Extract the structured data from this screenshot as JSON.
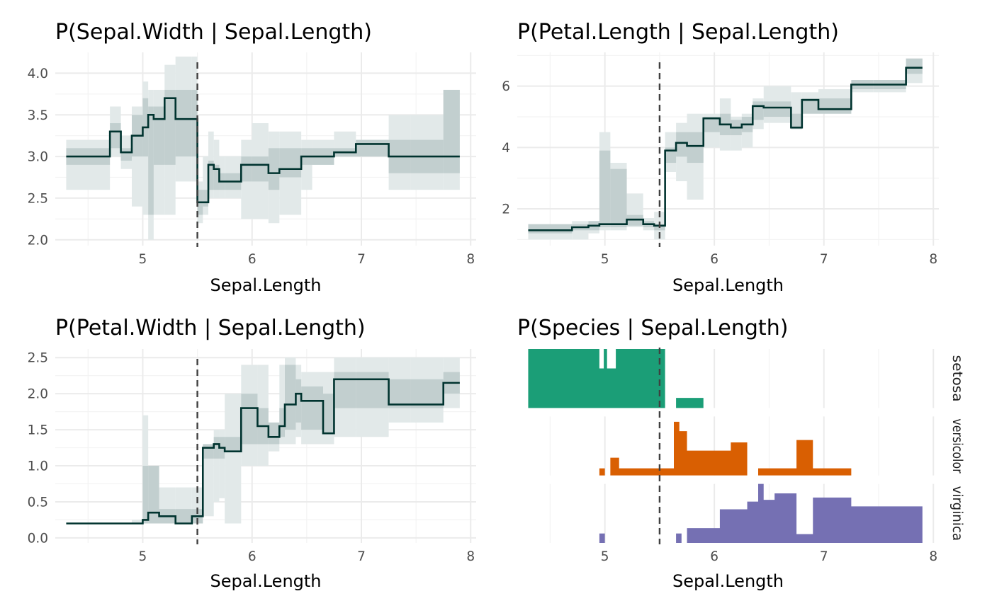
{
  "chart_data": [
    {
      "type": "line",
      "title": "P(Sepal.Width | Sepal.Length)",
      "xlabel": "Sepal.Length",
      "ylabel": "",
      "xlim": [
        4.2,
        8.05
      ],
      "ylim": [
        1.93,
        4.25
      ],
      "xticks": [
        5,
        6,
        7,
        8
      ],
      "yticks": [
        2.0,
        2.5,
        3.0,
        3.5,
        4.0
      ],
      "ytick_labels": [
        "2.0",
        "2.5",
        "3.0",
        "3.5",
        "4.0"
      ],
      "reference_line_x": 5.5,
      "band_colors": {
        "outer": "#e2e9e9",
        "inner": "#c2cfcf"
      },
      "line_color": "#00332f",
      "series": [
        {
          "x": [
            4.3,
            4.7,
            4.8,
            4.9,
            5.0,
            5.05,
            5.1,
            5.2,
            5.3,
            5.45,
            5.5,
            5.55,
            5.6,
            5.65,
            5.7,
            5.75,
            5.9,
            6.0,
            6.15,
            6.25,
            6.45,
            6.55,
            6.75,
            6.95,
            7.25,
            7.45,
            7.75,
            7.9
          ],
          "y": [
            3.0,
            3.3,
            3.05,
            3.25,
            3.35,
            3.5,
            3.45,
            3.7,
            3.45,
            3.45,
            2.45,
            2.45,
            2.9,
            2.85,
            2.7,
            2.7,
            2.9,
            2.9,
            2.8,
            2.85,
            3.0,
            3.0,
            3.05,
            3.15,
            3.0,
            3.0,
            3.0,
            3.0
          ],
          "lo_outer": [
            2.6,
            3.0,
            2.85,
            2.4,
            2.3,
            2.0,
            2.3,
            2.3,
            2.7,
            2.7,
            2.2,
            2.3,
            2.5,
            2.5,
            2.5,
            2.5,
            2.25,
            2.25,
            2.2,
            2.3,
            2.6,
            2.9,
            3.0,
            3.0,
            2.6,
            2.6,
            2.6,
            2.6
          ],
          "hi_outer": [
            3.2,
            3.6,
            3.25,
            3.6,
            3.9,
            3.8,
            3.8,
            4.1,
            4.2,
            4.2,
            2.7,
            3.0,
            3.3,
            3.2,
            3.0,
            3.0,
            3.2,
            3.4,
            3.3,
            3.3,
            3.2,
            3.2,
            3.3,
            3.2,
            3.5,
            3.5,
            3.8,
            3.8
          ],
          "lo_inner": [
            2.9,
            3.1,
            2.95,
            3.0,
            3.0,
            2.3,
            2.9,
            2.9,
            3.0,
            3.0,
            2.3,
            2.4,
            2.6,
            2.6,
            2.6,
            2.6,
            2.7,
            2.7,
            2.6,
            2.75,
            2.9,
            2.9,
            3.0,
            3.0,
            2.8,
            2.8,
            2.8,
            2.8
          ],
          "hi_inner": [
            3.1,
            3.4,
            3.1,
            3.5,
            3.7,
            3.6,
            3.6,
            3.8,
            3.8,
            3.8,
            2.6,
            2.6,
            2.95,
            2.9,
            2.8,
            2.8,
            3.0,
            3.0,
            3.1,
            3.1,
            3.1,
            3.1,
            3.1,
            3.2,
            3.2,
            3.2,
            3.8,
            3.8
          ]
        }
      ]
    },
    {
      "type": "line",
      "title": "P(Petal.Length | Sepal.Length)",
      "xlabel": "Sepal.Length",
      "ylabel": "",
      "xlim": [
        4.2,
        8.05
      ],
      "ylim": [
        0.8,
        7.1
      ],
      "xticks": [
        5,
        6,
        7,
        8
      ],
      "yticks": [
        2,
        4,
        6
      ],
      "ytick_labels": [
        "2",
        "4",
        "6"
      ],
      "reference_line_x": 5.5,
      "band_colors": {
        "outer": "#e2e9e9",
        "inner": "#c2cfcf"
      },
      "line_color": "#00332f",
      "series": [
        {
          "x": [
            4.3,
            4.7,
            4.85,
            4.95,
            5.05,
            5.2,
            5.35,
            5.45,
            5.55,
            5.65,
            5.75,
            5.9,
            6.05,
            6.15,
            6.25,
            6.35,
            6.45,
            6.7,
            6.8,
            6.95,
            7.25,
            7.45,
            7.75,
            7.9
          ],
          "y": [
            1.3,
            1.4,
            1.45,
            1.5,
            1.5,
            1.65,
            1.5,
            1.45,
            3.9,
            4.15,
            4.05,
            4.95,
            4.75,
            4.65,
            4.75,
            5.35,
            5.3,
            4.65,
            5.55,
            5.25,
            6.05,
            6.05,
            6.6,
            6.6
          ],
          "lo_outer": [
            1.0,
            1.0,
            1.2,
            1.3,
            1.3,
            1.4,
            1.3,
            1.0,
            3.2,
            2.9,
            2.3,
            4.0,
            3.9,
            3.9,
            4.0,
            4.6,
            4.8,
            4.6,
            5.1,
            5.1,
            5.8,
            5.8,
            6.1,
            6.1
          ],
          "hi_outer": [
            1.4,
            1.6,
            1.6,
            4.5,
            3.5,
            2.5,
            1.7,
            1.9,
            4.5,
            4.8,
            5.1,
            5.1,
            5.6,
            5.0,
            5.1,
            5.6,
            6.0,
            5.8,
            5.8,
            5.9,
            6.1,
            6.1,
            6.9,
            6.9
          ],
          "lo_inner": [
            1.2,
            1.3,
            1.3,
            1.4,
            1.4,
            1.45,
            1.4,
            1.3,
            3.5,
            3.7,
            3.5,
            4.5,
            4.4,
            4.4,
            4.5,
            4.9,
            5.0,
            4.6,
            5.1,
            5.1,
            5.9,
            5.9,
            6.4,
            6.4
          ],
          "hi_inner": [
            1.5,
            1.5,
            1.6,
            3.9,
            3.3,
            1.8,
            1.6,
            1.5,
            4.0,
            4.5,
            4.5,
            5.0,
            5.1,
            4.9,
            5.0,
            5.5,
            5.5,
            5.1,
            5.6,
            5.6,
            6.2,
            6.2,
            6.9,
            6.9
          ]
        }
      ]
    },
    {
      "type": "line",
      "title": "P(Petal.Width | Sepal.Length)",
      "xlabel": "Sepal.Length",
      "ylabel": "",
      "xlim": [
        4.2,
        8.05
      ],
      "ylim": [
        -0.07,
        2.62
      ],
      "xticks": [
        5,
        6,
        7,
        8
      ],
      "yticks": [
        0.0,
        0.5,
        1.0,
        1.5,
        2.0,
        2.5
      ],
      "ytick_labels": [
        "0.0",
        "0.5",
        "1.0",
        "1.5",
        "2.0",
        "2.5"
      ],
      "reference_line_x": 5.5,
      "band_colors": {
        "outer": "#e2e9e9",
        "inner": "#c2cfcf"
      },
      "line_color": "#00332f",
      "series": [
        {
          "x": [
            4.3,
            4.9,
            5.0,
            5.05,
            5.15,
            5.3,
            5.45,
            5.55,
            5.65,
            5.7,
            5.75,
            5.9,
            6.05,
            6.15,
            6.25,
            6.3,
            6.4,
            6.45,
            6.65,
            6.75,
            6.95,
            7.25,
            7.45,
            7.75,
            7.9
          ],
          "y": [
            0.2,
            0.2,
            0.25,
            0.35,
            0.3,
            0.2,
            0.3,
            1.25,
            1.3,
            1.25,
            1.2,
            1.8,
            1.55,
            1.4,
            1.55,
            1.85,
            2.0,
            1.9,
            1.45,
            2.2,
            2.2,
            1.85,
            1.85,
            2.15,
            2.15
          ],
          "lo_outer": [
            0.2,
            0.2,
            0.2,
            0.2,
            0.2,
            0.2,
            0.2,
            0.3,
            0.5,
            0.55,
            0.2,
            1.0,
            1.0,
            1.2,
            1.3,
            1.3,
            1.4,
            1.3,
            1.3,
            1.4,
            1.4,
            1.6,
            1.6,
            1.8,
            1.8
          ],
          "hi_outer": [
            0.2,
            0.25,
            1.7,
            1.0,
            0.7,
            0.7,
            0.7,
            1.3,
            1.5,
            1.5,
            2.0,
            2.4,
            2.4,
            1.6,
            2.4,
            2.5,
            2.4,
            2.3,
            2.3,
            2.5,
            2.5,
            2.5,
            2.5,
            2.5,
            2.5
          ],
          "lo_inner": [
            0.2,
            0.2,
            0.2,
            0.2,
            0.2,
            0.2,
            0.2,
            1.1,
            1.1,
            1.1,
            1.2,
            1.3,
            1.3,
            1.3,
            1.4,
            1.5,
            1.6,
            1.5,
            1.45,
            1.8,
            1.8,
            1.8,
            1.8,
            2.0,
            2.0
          ],
          "hi_inner": [
            0.2,
            0.2,
            1.0,
            1.0,
            0.4,
            0.4,
            0.4,
            1.3,
            1.4,
            1.4,
            1.4,
            2.0,
            1.8,
            1.6,
            1.8,
            2.4,
            2.2,
            2.1,
            2.0,
            2.3,
            2.3,
            2.2,
            2.2,
            2.3,
            2.3
          ]
        }
      ]
    },
    {
      "type": "area",
      "title": "P(Species | Sepal.Length)",
      "xlabel": "Sepal.Length",
      "ylabel": "",
      "xlim": [
        4.2,
        8.05
      ],
      "xticks": [
        5,
        6,
        7,
        8
      ],
      "reference_line_x": 5.5,
      "facets": [
        "setosa",
        "versicolor",
        "virginica"
      ],
      "series": [
        {
          "name": "setosa",
          "color": "#1b9e77",
          "segments": [
            {
              "x": [
                4.3,
                4.95,
                4.99,
                5.02,
                5.06,
                5.1,
                5.55
              ],
              "p": [
                1.0,
                0.67,
                1.0,
                0.67,
                0.67,
                1.0,
                1.0
              ]
            },
            {
              "x": [
                5.65,
                5.9
              ],
              "p": [
                0.17,
                0.17
              ]
            }
          ]
        },
        {
          "name": "versicolor",
          "color": "#d95f02",
          "segments": [
            {
              "x": [
                4.95,
                5.0
              ],
              "p": [
                0.12,
                0.12
              ]
            },
            {
              "x": [
                5.05,
                5.13,
                5.55,
                5.63,
                5.68,
                5.75,
                6.05,
                6.15,
                6.3
              ],
              "p": [
                0.3,
                0.12,
                0.12,
                0.91,
                0.75,
                0.42,
                0.42,
                0.56,
                0.56
              ]
            },
            {
              "x": [
                6.4,
                6.65,
                6.75,
                6.9,
                7.25
              ],
              "p": [
                0.12,
                0.12,
                0.6,
                0.12,
                0.3
              ]
            }
          ]
        },
        {
          "name": "virginica",
          "color": "#7570b3",
          "segments": [
            {
              "x": [
                4.95,
                5.0
              ],
              "p": [
                0.16,
                0.16
              ]
            },
            {
              "x": [
                5.65,
                5.7
              ],
              "p": [
                0.16,
                0.16
              ]
            },
            {
              "x": [
                5.75,
                5.85,
                6.05,
                6.3,
                6.4,
                6.45,
                6.55,
                6.65,
                6.75,
                6.9,
                7.25,
                7.9
              ],
              "p": [
                0.25,
                0.25,
                0.57,
                0.7,
                1.0,
                0.73,
                0.84,
                0.84,
                0.15,
                0.77,
                0.62,
                1.0
              ]
            }
          ]
        }
      ]
    }
  ]
}
